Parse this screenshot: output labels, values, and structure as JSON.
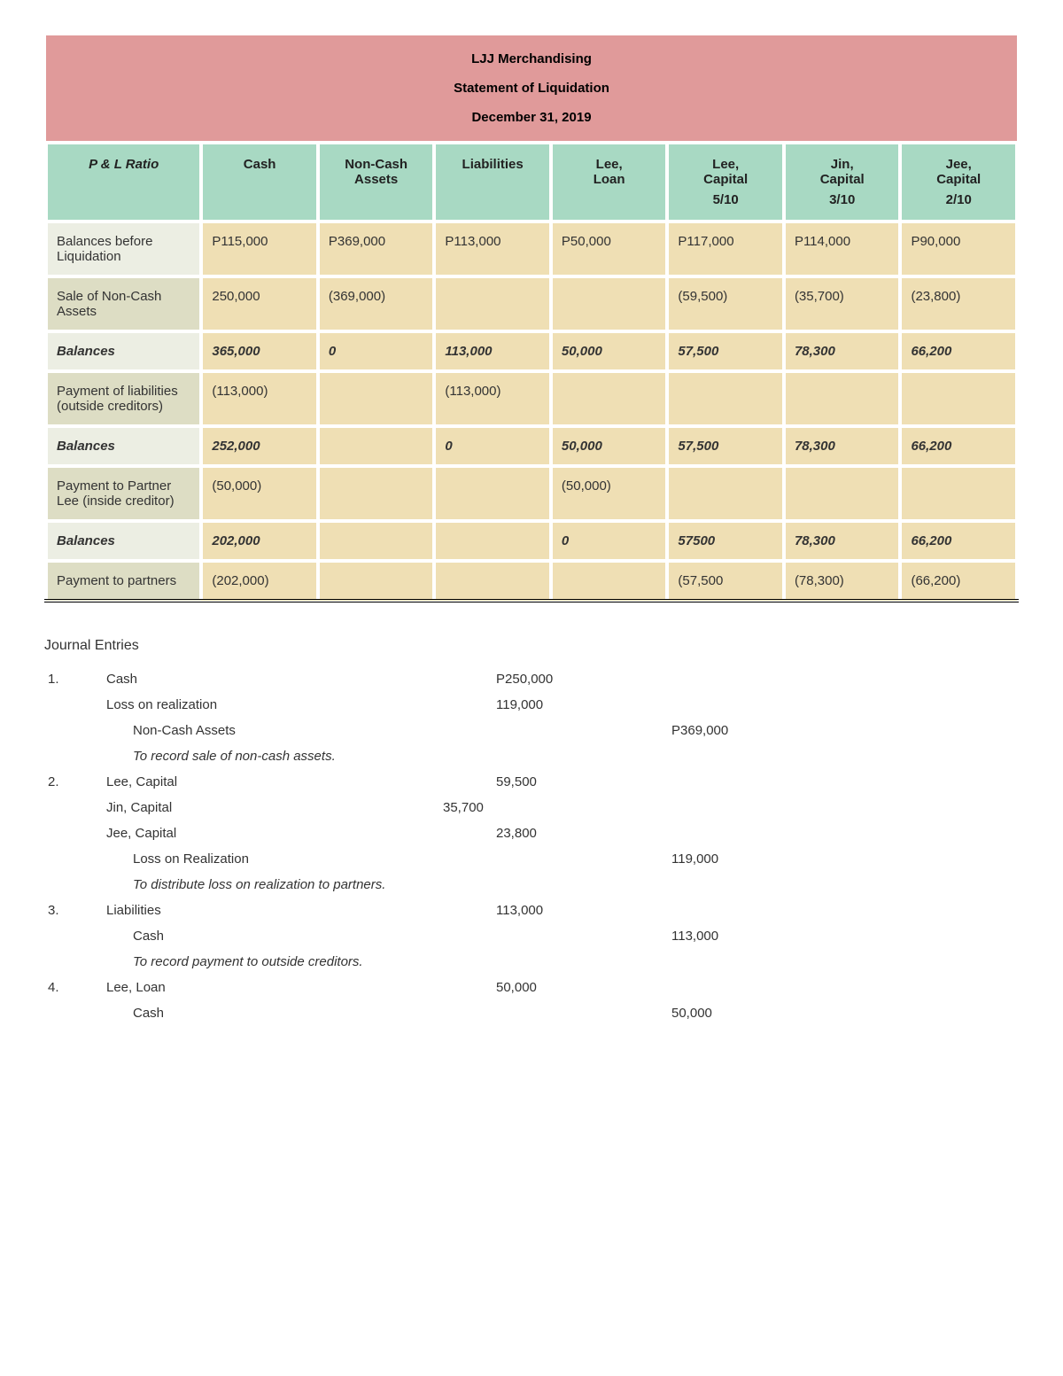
{
  "title": {
    "company": "LJJ Merchandising",
    "statement": "Statement of Liquidation",
    "date": "December 31, 2019"
  },
  "columns": [
    {
      "label": "P & L Ratio"
    },
    {
      "label": "Cash"
    },
    {
      "label": "Non-Cash Assets"
    },
    {
      "label": "Liabilities"
    },
    {
      "label": "Lee, Loan"
    },
    {
      "label": "Lee, Capital",
      "sub": "5/10"
    },
    {
      "label": "Jin, Capital",
      "sub": "3/10"
    },
    {
      "label": "Jee, Capital",
      "sub": "2/10"
    }
  ],
  "rows": [
    {
      "style": "normal",
      "label_bg": "label-cell",
      "label": "Balances before Liquidation",
      "cells": [
        "P115,000",
        "P369,000",
        "P113,000",
        "P50,000",
        "P117,000",
        "P114,000",
        "P90,000"
      ]
    },
    {
      "style": "normal",
      "label_bg": "label-cell-alt",
      "label": "Sale of  Non-Cash Assets",
      "cells": [
        "250,000",
        "(369,000)",
        "",
        "",
        "(59,500)",
        "(35,700)",
        "(23,800)"
      ]
    },
    {
      "style": "bold",
      "label_bg": "label-cell",
      "label": "Balances",
      "cells": [
        "365,000",
        "0",
        "113,000",
        "50,000",
        "57,500",
        "78,300",
        "66,200"
      ]
    },
    {
      "style": "normal",
      "label_bg": "label-cell-alt",
      "label": "Payment of liabilities (outside creditors)",
      "cells": [
        "(113,000)",
        "",
        "(113,000)",
        "",
        "",
        "",
        ""
      ]
    },
    {
      "style": "bold",
      "label_bg": "label-cell",
      "label": "Balances",
      "cells": [
        "252,000",
        "",
        "0",
        "50,000",
        "57,500",
        "78,300",
        "66,200"
      ]
    },
    {
      "style": "normal",
      "label_bg": "label-cell-alt",
      "label": "Payment to Partner Lee (inside creditor)",
      "cells": [
        "(50,000)",
        "",
        "",
        "(50,000)",
        "",
        "",
        ""
      ]
    },
    {
      "style": "bold",
      "label_bg": "label-cell",
      "label": "Balances",
      "cells": [
        "202,000",
        "",
        "",
        "0",
        "57500",
        "78,300",
        "66,200"
      ]
    },
    {
      "style": "final",
      "label_bg": "label-cell-alt",
      "label": "Payment to partners",
      "cells": [
        "(202,000)",
        "",
        "",
        "",
        "(57,500",
        "(78,300)",
        "(66,200)"
      ]
    }
  ],
  "journal_title": "Journal Entries",
  "journal": [
    {
      "num": "1.",
      "lines": [
        {
          "indent": 0,
          "acct": "Cash",
          "debit": "P250,000",
          "credit": ""
        },
        {
          "indent": 0,
          "acct": "Loss on realization",
          "debit": "119,000",
          "credit": ""
        },
        {
          "indent": 1,
          "acct": "Non-Cash Assets",
          "debit": "",
          "credit": "P369,000"
        },
        {
          "indent": 1,
          "desc": "To record sale of non-cash assets."
        }
      ]
    },
    {
      "num": "2.",
      "lines": [
        {
          "indent": 0,
          "acct": "Lee, Capital",
          "debit": "59,500",
          "credit": ""
        },
        {
          "indent": 0,
          "acct": "Jin, Capital",
          "debit_shift": "35,700",
          "credit": ""
        },
        {
          "indent": 0,
          "acct": "Jee, Capital",
          "debit": "23,800",
          "credit": ""
        },
        {
          "indent": 1,
          "acct": "Loss on Realization",
          "debit": "",
          "credit": "119,000"
        },
        {
          "indent": 1,
          "desc": "To distribute loss on realization to partners."
        }
      ]
    },
    {
      "num": "3.",
      "lines": [
        {
          "indent": 0,
          "acct": "Liabilities",
          "debit": "113,000",
          "credit": ""
        },
        {
          "indent": 1,
          "acct": "Cash",
          "debit": "",
          "credit": "113,000"
        },
        {
          "indent": 1,
          "desc": "To record payment to outside creditors."
        }
      ]
    },
    {
      "num": "4.",
      "lines": [
        {
          "indent": 0,
          "acct": "Lee, Loan",
          "debit": "50,000",
          "credit": ""
        },
        {
          "indent": 1,
          "acct": "Cash",
          "debit": "",
          "credit": "50,000"
        }
      ]
    }
  ],
  "colors": {
    "title_bg": "#e09a9a",
    "header_bg": "#a8d9c3",
    "label_bg": "#eceee3",
    "label_alt_bg": "#ddddc4",
    "data_bg": "#efdfb4"
  }
}
